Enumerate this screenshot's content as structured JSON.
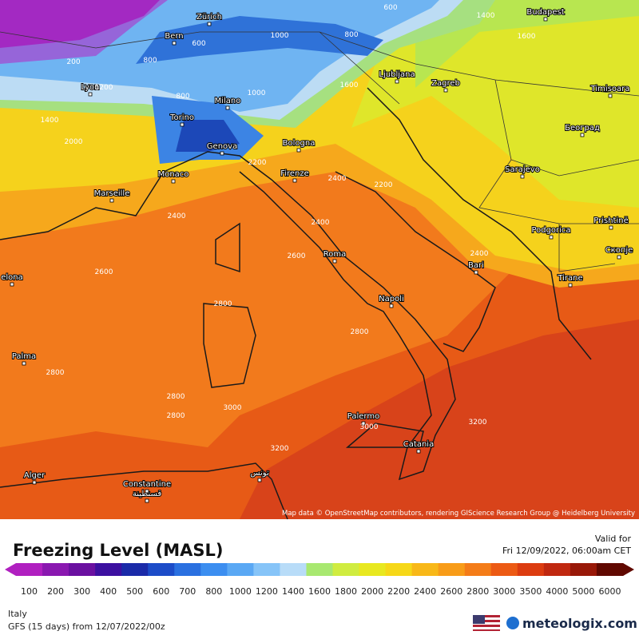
{
  "header": {
    "title": "Freezing Level (MASL)",
    "valid_label": "Valid for",
    "valid_time": "Fri 12/09/2022, 06:00am CET"
  },
  "map": {
    "cities": [
      "Zürich",
      "Bern",
      "Budapest",
      "Lyon",
      "Milano",
      "Torino",
      "Genova",
      "Bologna",
      "Monaco",
      "Marseille",
      "Firenze",
      "Ljubljana",
      "Zagreb",
      "Timisoara",
      "Београд",
      "Sarajevo",
      "Podgorica",
      "Prishtinë",
      "Скопје",
      "Tirane",
      "Roma",
      "Napoli",
      "Bari",
      "Palermo",
      "Catania",
      "Palma",
      "elona",
      "Alger",
      "Constantine",
      "قسنطينة",
      "تونس"
    ],
    "contour_labels": [
      600,
      1400,
      1000,
      800,
      600,
      800,
      200,
      1200,
      800,
      1000,
      1600,
      1600,
      1400,
      2000,
      2200,
      2200,
      2400,
      2400,
      2400,
      2600,
      2600,
      2400,
      2800,
      2800,
      2800,
      2800,
      3000,
      2800,
      3200,
      3200,
      3000
    ],
    "attribution": "Map data © OpenStreetMap contributors, rendering GIScience Research Group @ Heidelberg University"
  },
  "legend": {
    "values": [
      100,
      200,
      300,
      400,
      500,
      600,
      700,
      800,
      1000,
      1200,
      1400,
      1600,
      1800,
      2000,
      2200,
      2400,
      2600,
      2800,
      3000,
      3500,
      4000,
      5000,
      6000
    ],
    "colors": [
      "#b020c0",
      "#8a18b0",
      "#6a10a0",
      "#3c10a0",
      "#1a2aa8",
      "#1c4cc8",
      "#2a70e0",
      "#3c8ef0",
      "#5aa8f4",
      "#86c4f8",
      "#b8dcf8",
      "#a8e870",
      "#d0ec40",
      "#e8e820",
      "#f6d818",
      "#f8b818",
      "#f89c18",
      "#f47c18",
      "#ec5a14",
      "#dc3c10",
      "#c02810",
      "#981808",
      "#600800"
    ]
  },
  "footer": {
    "region": "Italy",
    "model": "GFS (15 days) from  12/07/2022/00z",
    "brand": "meteologix.com"
  }
}
